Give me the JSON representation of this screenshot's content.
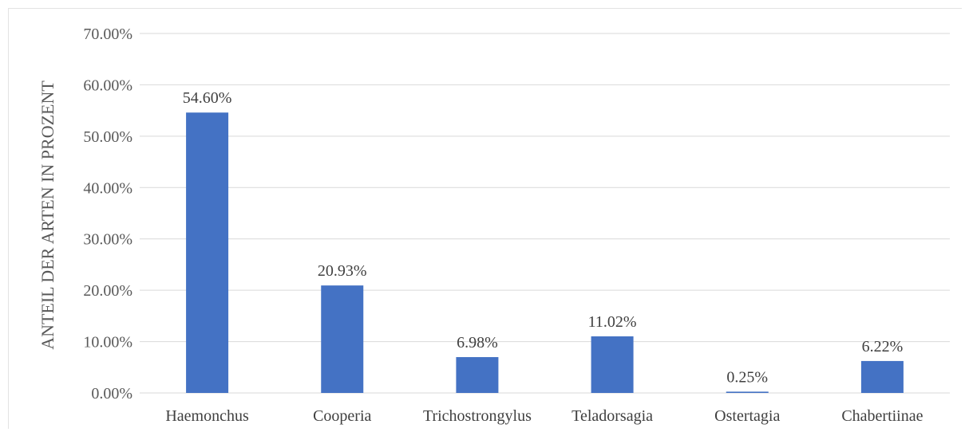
{
  "chart_data": {
    "type": "bar",
    "categories": [
      "Haemonchus",
      "Cooperia",
      "Trichostrongylus",
      "Teladorsagia",
      "Ostertagia",
      "Chabertiinae"
    ],
    "values": [
      54.6,
      20.93,
      6.98,
      11.02,
      0.25,
      6.22
    ],
    "data_labels": [
      "54.60%",
      "20.93%",
      "6.98%",
      "11.02%",
      "0.25%",
      "6.22%"
    ],
    "y_ticks": [
      "0.00%",
      "10.00%",
      "20.00%",
      "30.00%",
      "40.00%",
      "50.00%",
      "60.00%",
      "70.00%"
    ],
    "ylim": [
      0,
      70
    ],
    "ylabel": "ANTEIL DER ARTEN IN PROZENT",
    "xlabel": "",
    "title": "",
    "grid": true,
    "bar_color": "#4472C4",
    "grid_color": "#d9d9d9"
  }
}
